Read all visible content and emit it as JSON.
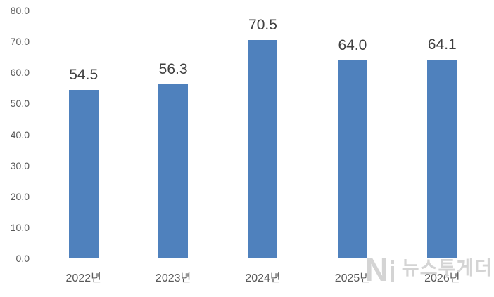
{
  "chart_data": {
    "type": "bar",
    "categories": [
      "2022년",
      "2023년",
      "2024년",
      "2025년",
      "2026년"
    ],
    "values": [
      54.5,
      56.3,
      70.5,
      64.0,
      64.1
    ],
    "data_labels": [
      "54.5",
      "56.3",
      "70.5",
      "64.0",
      "64.1"
    ],
    "title": "",
    "xlabel": "",
    "ylabel": "",
    "ylim": [
      0,
      80
    ],
    "yticks": [
      0,
      10,
      20,
      30,
      40,
      50,
      60,
      70,
      80
    ],
    "ytick_labels": [
      "0.0",
      "10.0",
      "20.0",
      "30.0",
      "40.0",
      "50.0",
      "60.0",
      "70.0",
      "80.0"
    ],
    "grid": false,
    "legend": false,
    "bar_color": "#4f81bd"
  },
  "watermark": {
    "logo_letter": "N",
    "brand_text": "뉴스투게더"
  },
  "colors": {
    "bar": "#4f81bd",
    "axis_label": "#595959",
    "data_label": "#404040",
    "axis_line": "#d9d9d9",
    "watermark": "#d4d4d4"
  }
}
